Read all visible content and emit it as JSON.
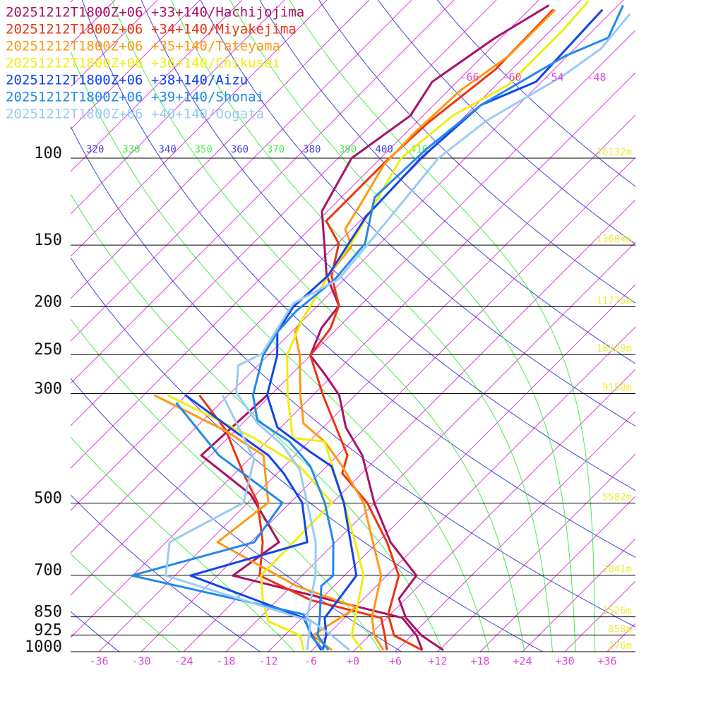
{
  "chart_data": {
    "type": "skewt",
    "ylim": [
      1000,
      47.8
    ],
    "log_scale": true,
    "xlim": [
      -40,
      40
    ],
    "skew_degrees": 45,
    "yticks": [
      100,
      150,
      200,
      250,
      300,
      500,
      700,
      850,
      925,
      1000
    ],
    "heights": {
      "values": [
        16132,
        13604,
        11775,
        10329,
        9150,
        5582,
        3041,
        1526,
        858,
        276
      ],
      "value_labels": [
        "16132m",
        "13604m",
        "11775m",
        "10329m",
        "9150m",
        "5582m",
        "3041m",
        "1526m",
        "858m",
        "276m"
      ]
    },
    "xticks": [
      -36,
      -30,
      -24,
      -18,
      -12,
      -6,
      {
        "value": 0,
        "label": "+0"
      },
      {
        "value": 6,
        "label": "+6"
      },
      {
        "value": 12,
        "label": "+12"
      },
      {
        "value": 18,
        "label": "+18"
      },
      {
        "value": 24,
        "label": "+24"
      },
      {
        "value": 30,
        "label": "+30"
      },
      {
        "value": 36,
        "label": "+36"
      }
    ],
    "isotherms": [
      -132,
      -126,
      -120,
      -114,
      -108,
      -102,
      -96,
      -90,
      -84,
      -78,
      -72,
      -66,
      -60,
      -54,
      -48,
      -42,
      -36,
      -30,
      -24,
      -18,
      -12,
      -6,
      0,
      6,
      12,
      18,
      24,
      30,
      36
    ],
    "isotherm_labels": [
      -66,
      -60,
      -54,
      -48
    ],
    "isotherm_color": "#dd44dd",
    "dry_adiabats": [
      220,
      240,
      260,
      280,
      300,
      320,
      340,
      360,
      380,
      400,
      420,
      440,
      460
    ],
    "dry_adiabat_color": "#4444dd",
    "moist_adiabats": [
      250,
      270,
      290,
      310,
      330,
      350,
      370,
      390,
      410
    ],
    "moist_adiabat_color": "#44ee44",
    "height_color": "#eeee44",
    "series": [
      {
        "name": "20251212T1800Z+06 +33+140/Hachijojima",
        "color": "#aa1166",
        "pressure": [
          993,
          927,
          854,
          781,
          701,
          600,
          499,
          400,
          351,
          302,
          274,
          251,
          221,
          199,
          173,
          128,
          100,
          82,
          70,
          57,
          49
        ],
        "values": [
          12.6,
          7.4,
          2.7,
          -1.0,
          -1.8,
          -10.2,
          -18.1,
          -26.5,
          -32.8,
          -38.3,
          -43.3,
          -48.0,
          -50.3,
          -51.0,
          -57.0,
          -66.8,
          -70.1,
          -67.8,
          -69.5,
          -66.8,
          -63.8
        ],
        "dewpoint": {
          "pressure": [
            993,
            927,
            854,
            701,
            600,
            480,
            400,
            302
          ],
          "values": [
            9.6,
            6.7,
            2.2,
            -27.8,
            -26.0,
            -36.8,
            -49.3,
            -48.5
          ]
        }
      },
      {
        "name": "20251212T1800Z+06 +34+140/Miyakejima",
        "color": "#ee3311",
        "pressure": [
          993,
          927,
          840,
          701,
          600,
          499,
          435,
          400,
          302,
          251,
          221,
          199,
          173,
          149,
          134,
          102,
          85,
          66,
          50
        ],
        "values": [
          9.6,
          3.5,
          -0.3,
          -4.3,
          -10.7,
          -19.1,
          -26.8,
          -28.6,
          -40.6,
          -48.0,
          -49.0,
          -51.0,
          -56.3,
          -59.8,
          -64.8,
          -64.8,
          -64.3,
          -62.3,
          -62.6
        ],
        "dewpoint": {
          "pressure": [
            993,
            927,
            854,
            786,
            701,
            600,
            499,
            435,
            355,
            302
          ],
          "values": [
            4.6,
            2.2,
            -0.8,
            -13.3,
            -24.0,
            -28.3,
            -34.6,
            -40.8,
            -49.5,
            -58.1
          ]
        }
      },
      {
        "name": "20251212T1800Z+06 +35+140/Tateyama",
        "color": "#ff9911",
        "pressure": [
          993,
          927,
          854,
          701,
          600,
          499,
          421,
          375,
          345,
          302,
          251,
          225,
          199,
          173,
          151,
          139,
          124,
          103,
          89,
          73,
          62,
          50
        ],
        "values": [
          4.1,
          0.7,
          -2.1,
          -6.8,
          -12.7,
          -19.6,
          -27.8,
          -33.8,
          -39.3,
          -43.8,
          -49.5,
          -53.5,
          -55.0,
          -56.8,
          -57.6,
          -61.0,
          -62.3,
          -64.6,
          -64.8,
          -64.3,
          -62.3,
          -62.3
        ],
        "dewpoint": {
          "pressure": [
            993,
            927,
            813,
            736,
            600,
            499,
            400,
            357,
            302
          ],
          "values": [
            -3.2,
            -8.0,
            -5.8,
            -17.3,
            -34.7,
            -33.1,
            -40.5,
            -49.3,
            -64.5
          ]
        }
      },
      {
        "name": "20251212T1800Z+06 +36+140/Chikusei",
        "color": "#eeee11",
        "pressure": [
          993,
          927,
          854,
          701,
          600,
          499,
          375,
          369,
          302,
          251,
          214,
          173,
          146,
          100,
          82,
          71,
          55,
          48
        ],
        "values": [
          1.1,
          -2.5,
          -4.5,
          -9.3,
          -15.2,
          -22.4,
          -33.8,
          -38.8,
          -45.6,
          -51.3,
          -54.1,
          -56.8,
          -58.3,
          -63.1,
          -61.8,
          -58.3,
          -58.3,
          -58.8
        ],
        "dewpoint": {
          "pressure": [
            993,
            927,
            868,
            786,
            701,
            499,
            421,
            369,
            302
          ],
          "values": [
            -7.2,
            -9.8,
            -16.3,
            -20.1,
            -23.8,
            -24.1,
            -33.8,
            -44.3,
            -62.6
          ]
        }
      },
      {
        "name": "20251212T1800Z+06 +38+140/Aizu",
        "color": "#1144ee",
        "pressure": [
          993,
          927,
          854,
          701,
          499,
          421,
          394,
          351,
          302,
          251,
          225,
          200,
          173,
          131,
          100,
          78,
          70,
          50
        ],
        "values": [
          -4.5,
          -6.1,
          -8.8,
          -10.3,
          -22.4,
          -29.3,
          -34.3,
          -42.5,
          -48.5,
          -52.7,
          -56.0,
          -57.3,
          -56.8,
          -59.8,
          -60.3,
          -59.3,
          -54.8,
          -55.6
        ],
        "dewpoint": {
          "pressure": [
            993,
            927,
            854,
            701,
            600,
            499,
            435,
            400,
            355,
            302
          ],
          "values": [
            -4.7,
            -8.1,
            -11.8,
            -33.8,
            -22.0,
            -28.3,
            -35.1,
            -39.8,
            -48.5,
            -60.1
          ]
        }
      },
      {
        "name": "20251212T1800Z+06 +39+140/Shonai",
        "color": "#2288ee",
        "pressure": [
          993,
          927,
          854,
          736,
          701,
          600,
          499,
          421,
          375,
          340,
          302,
          251,
          225,
          204,
          176,
          149,
          120,
          96,
          78,
          62,
          57,
          49
        ],
        "values": [
          -3.7,
          -7.3,
          -9.5,
          -13.8,
          -13.6,
          -18.3,
          -25.1,
          -32.3,
          -38.8,
          -46.3,
          -50.5,
          -54.7,
          -56.0,
          -56.3,
          -55.3,
          -56.1,
          -61.3,
          -60.8,
          -59.3,
          -54.3,
          -50.8,
          -53.3
        ],
        "dewpoint": {
          "pressure": [
            993,
            927,
            840,
            701,
            600,
            499,
            400,
            313
          ],
          "values": [
            -4.4,
            -8.3,
            -12.3,
            -42.1,
            -29.5,
            -31.1,
            -46.8,
            -60.3
          ]
        }
      },
      {
        "name": "20251212T1800Z+06 +40+140/Oogata",
        "color": "#99ccf5",
        "pressure": [
          993,
          927,
          854,
          701,
          600,
          499,
          428,
          381,
          345,
          298,
          263,
          249,
          197,
          176,
          144,
          100,
          84,
          68,
          60,
          51
        ],
        "values": [
          -0.7,
          -5.3,
          -11.3,
          -16.1,
          -20.8,
          -27.6,
          -33.3,
          -39.3,
          -45.8,
          -53.3,
          -56.8,
          -55.1,
          -57.8,
          -54.8,
          -55.8,
          -57.8,
          -56.3,
          -51.8,
          -50.3,
          -51.1
        ],
        "dewpoint": {
          "pressure": [
            993,
            868,
            701,
            600,
            499,
            407,
            302
          ],
          "values": [
            -6.7,
            -10.3,
            -37.3,
            -41.5,
            -36.6,
            -41.3,
            -54.8
          ]
        }
      }
    ]
  }
}
